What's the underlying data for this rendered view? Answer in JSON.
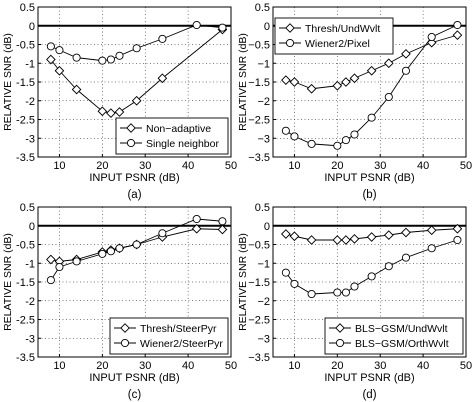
{
  "chart_data": [
    {
      "type": "line",
      "panel_label": "(a)",
      "xlabel": "INPUT PSNR (dB)",
      "ylabel": "RELATIVE SNR (dB)",
      "xlim": [
        5,
        50
      ],
      "ylim": [
        -3.5,
        0.5
      ],
      "xticks": [
        10,
        20,
        30,
        40,
        50
      ],
      "yticks": [
        0.5,
        0,
        -0.5,
        -1,
        -1.5,
        -2,
        -2.5,
        -3,
        -3.5
      ],
      "ytick_labels": [
        "0.5",
        "0",
        "-0.5",
        "-1",
        "-1.5",
        "-2",
        "-2.5",
        "-3",
        "-3.5"
      ],
      "grid": true,
      "legend_position": "bottom-right",
      "series": [
        {
          "name": "Non−adaptive",
          "marker": "diamond",
          "x": [
            8,
            10,
            14,
            20,
            22,
            24,
            28,
            34,
            48
          ],
          "y": [
            -0.9,
            -1.2,
            -1.7,
            -2.28,
            -2.33,
            -2.3,
            -2.0,
            -1.4,
            -0.1
          ]
        },
        {
          "name": "Single neighbor",
          "marker": "circle",
          "x": [
            8,
            10,
            14,
            20,
            22,
            24,
            28,
            34,
            42,
            48
          ],
          "y": [
            -0.55,
            -0.65,
            -0.85,
            -0.93,
            -0.9,
            -0.8,
            -0.6,
            -0.35,
            0.02,
            -0.05
          ]
        }
      ]
    },
    {
      "type": "line",
      "panel_label": "(b)",
      "xlabel": "INPUT PSNR (dB)",
      "ylabel": "RELATIVE SNR (dB)",
      "xlim": [
        5,
        50
      ],
      "ylim": [
        -3.5,
        0.5
      ],
      "xticks": [
        10,
        20,
        30,
        40,
        50
      ],
      "yticks": [
        0.5,
        0,
        -0.5,
        -1,
        -1.5,
        -2,
        -2.5,
        -3,
        -3.5
      ],
      "ytick_labels": [
        "0.5",
        "0",
        "−0.5",
        "−1",
        "−1.5",
        "−2",
        "−2.5",
        "−3",
        "−3.5"
      ],
      "grid": true,
      "legend_position": "top-left",
      "series": [
        {
          "name": "Thresh/UndWvlt",
          "marker": "diamond",
          "x": [
            8,
            10,
            14,
            20,
            22,
            24,
            28,
            32,
            36,
            42,
            48
          ],
          "y": [
            -1.45,
            -1.5,
            -1.68,
            -1.6,
            -1.5,
            -1.4,
            -1.2,
            -1.0,
            -0.75,
            -0.45,
            -0.25
          ]
        },
        {
          "name": "Wiener2/Pixel",
          "marker": "circle",
          "x": [
            8,
            10,
            14,
            20,
            22,
            24,
            28,
            32,
            36,
            42,
            48
          ],
          "y": [
            -2.8,
            -2.95,
            -3.15,
            -3.2,
            -3.05,
            -2.9,
            -2.45,
            -1.9,
            -1.2,
            -0.3,
            0.02
          ]
        }
      ]
    },
    {
      "type": "line",
      "panel_label": "(c)",
      "xlabel": "INPUT PSNR (dB)",
      "ylabel": "RELATIVE SNR (dB)",
      "xlim": [
        5,
        50
      ],
      "ylim": [
        -3.5,
        0.5
      ],
      "xticks": [
        10,
        20,
        30,
        40,
        50
      ],
      "yticks": [
        0.5,
        0,
        -0.5,
        -1,
        -1.5,
        -2,
        -2.5,
        -3,
        -3.5
      ],
      "ytick_labels": [
        "0.5",
        "0",
        "-0.5",
        "-1",
        "-1.5",
        "-2",
        "-2.5",
        "-3",
        "-3.5"
      ],
      "grid": true,
      "legend_position": "bottom-right",
      "series": [
        {
          "name": "Thresh/SteerPyr",
          "marker": "diamond",
          "x": [
            8,
            10,
            14,
            20,
            22,
            24,
            28,
            34,
            42,
            48
          ],
          "y": [
            -0.9,
            -0.95,
            -0.9,
            -0.7,
            -0.65,
            -0.6,
            -0.5,
            -0.3,
            -0.08,
            -0.1
          ]
        },
        {
          "name": "Wiener2/SteerPyr",
          "marker": "circle",
          "x": [
            8,
            10,
            14,
            20,
            22,
            24,
            28,
            34,
            42,
            48
          ],
          "y": [
            -1.45,
            -1.1,
            -0.95,
            -0.75,
            -0.68,
            -0.6,
            -0.5,
            -0.2,
            0.18,
            0.12
          ]
        }
      ]
    },
    {
      "type": "line",
      "panel_label": "(d)",
      "xlabel": "INPUT PSNR (dB)",
      "ylabel": "RELATIVE SNR (dB)",
      "xlim": [
        5,
        50
      ],
      "ylim": [
        -3.5,
        0.5
      ],
      "xticks": [
        10,
        20,
        30,
        40,
        50
      ],
      "yticks": [
        0.5,
        0,
        -0.5,
        -1,
        -1.5,
        -2,
        -2.5,
        -3,
        -3.5
      ],
      "ytick_labels": [
        "0.5",
        "0",
        "−0.5",
        "−1",
        "−1.5",
        "−2",
        "−2.5",
        "−3",
        "−3.5"
      ],
      "grid": true,
      "legend_position": "bottom-right",
      "series": [
        {
          "name": "BLS−GSM/UndWvlt",
          "marker": "diamond",
          "x": [
            8,
            10,
            14,
            20,
            22,
            24,
            28,
            32,
            36,
            42,
            48
          ],
          "y": [
            -0.22,
            -0.28,
            -0.38,
            -0.38,
            -0.38,
            -0.35,
            -0.3,
            -0.25,
            -0.18,
            -0.12,
            -0.08
          ]
        },
        {
          "name": "BLS−GSM/OrthWvlt",
          "marker": "circle",
          "x": [
            8,
            10,
            14,
            20,
            22,
            24,
            28,
            32,
            36,
            42,
            48
          ],
          "y": [
            -1.25,
            -1.55,
            -1.82,
            -1.78,
            -1.78,
            -1.62,
            -1.35,
            -1.08,
            -0.85,
            -0.6,
            -0.38
          ]
        }
      ]
    }
  ]
}
